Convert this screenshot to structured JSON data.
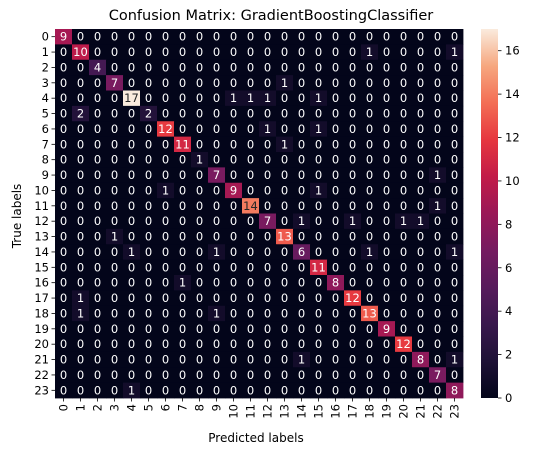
{
  "chart_data": {
    "type": "heatmap",
    "title": "Confusion Matrix: GradientBoostingClassifier",
    "xlabel": "Predicted labels",
    "ylabel": "True labels",
    "x_categories": [
      "0",
      "1",
      "2",
      "3",
      "4",
      "5",
      "6",
      "7",
      "8",
      "9",
      "10",
      "11",
      "12",
      "13",
      "14",
      "15",
      "16",
      "17",
      "18",
      "19",
      "20",
      "21",
      "22",
      "23"
    ],
    "y_categories": [
      "0",
      "1",
      "2",
      "3",
      "4",
      "5",
      "6",
      "7",
      "8",
      "9",
      "10",
      "11",
      "12",
      "13",
      "14",
      "15",
      "16",
      "17",
      "18",
      "19",
      "20",
      "21",
      "22",
      "23"
    ],
    "colorbar": {
      "min": 0,
      "max": 17,
      "ticks": [
        "0",
        "2",
        "4",
        "6",
        "8",
        "10",
        "12",
        "14",
        "16"
      ]
    },
    "matrix": [
      [
        9,
        0,
        0,
        0,
        0,
        0,
        0,
        0,
        0,
        0,
        0,
        0,
        0,
        0,
        0,
        0,
        0,
        0,
        0,
        0,
        0,
        0,
        0,
        0
      ],
      [
        0,
        10,
        0,
        0,
        0,
        0,
        0,
        0,
        0,
        0,
        0,
        0,
        0,
        0,
        0,
        0,
        0,
        0,
        1,
        0,
        0,
        0,
        0,
        1
      ],
      [
        0,
        0,
        4,
        0,
        0,
        0,
        0,
        0,
        0,
        0,
        0,
        0,
        0,
        0,
        0,
        0,
        0,
        0,
        0,
        0,
        0,
        0,
        0,
        0
      ],
      [
        0,
        0,
        0,
        7,
        0,
        0,
        0,
        0,
        0,
        0,
        0,
        0,
        0,
        1,
        0,
        0,
        0,
        0,
        0,
        0,
        0,
        0,
        0,
        0
      ],
      [
        0,
        0,
        0,
        0,
        17,
        0,
        0,
        0,
        0,
        0,
        1,
        1,
        1,
        0,
        0,
        1,
        0,
        0,
        0,
        0,
        0,
        0,
        0,
        0
      ],
      [
        0,
        2,
        0,
        0,
        0,
        2,
        0,
        0,
        0,
        0,
        0,
        0,
        0,
        0,
        0,
        0,
        0,
        0,
        0,
        0,
        0,
        0,
        0,
        0
      ],
      [
        0,
        0,
        0,
        0,
        0,
        0,
        12,
        0,
        0,
        0,
        0,
        0,
        1,
        0,
        0,
        1,
        0,
        0,
        0,
        0,
        0,
        0,
        0,
        0
      ],
      [
        0,
        0,
        0,
        0,
        0,
        0,
        0,
        11,
        0,
        0,
        0,
        0,
        0,
        1,
        0,
        0,
        0,
        0,
        0,
        0,
        0,
        0,
        0,
        0
      ],
      [
        0,
        0,
        0,
        0,
        0,
        0,
        0,
        0,
        1,
        0,
        0,
        0,
        0,
        0,
        0,
        0,
        0,
        0,
        0,
        0,
        0,
        0,
        0,
        0
      ],
      [
        0,
        0,
        0,
        0,
        0,
        0,
        0,
        0,
        0,
        7,
        0,
        0,
        0,
        0,
        0,
        0,
        0,
        0,
        0,
        0,
        0,
        0,
        1,
        0
      ],
      [
        0,
        0,
        0,
        0,
        0,
        0,
        1,
        0,
        0,
        0,
        9,
        0,
        0,
        0,
        0,
        1,
        0,
        0,
        0,
        0,
        0,
        0,
        0,
        0
      ],
      [
        0,
        0,
        0,
        0,
        0,
        0,
        0,
        0,
        0,
        0,
        0,
        14,
        0,
        0,
        0,
        0,
        0,
        0,
        0,
        0,
        0,
        0,
        1,
        0
      ],
      [
        0,
        0,
        0,
        0,
        0,
        0,
        0,
        0,
        0,
        0,
        0,
        0,
        7,
        0,
        1,
        0,
        0,
        1,
        0,
        0,
        1,
        1,
        0,
        0
      ],
      [
        0,
        0,
        0,
        1,
        0,
        0,
        0,
        0,
        0,
        0,
        0,
        0,
        0,
        13,
        0,
        0,
        0,
        0,
        0,
        0,
        0,
        0,
        0,
        0
      ],
      [
        0,
        0,
        0,
        0,
        1,
        0,
        0,
        0,
        0,
        1,
        0,
        0,
        0,
        0,
        6,
        0,
        0,
        0,
        1,
        0,
        0,
        0,
        0,
        1
      ],
      [
        0,
        0,
        0,
        0,
        0,
        0,
        0,
        0,
        0,
        0,
        0,
        0,
        0,
        0,
        0,
        11,
        0,
        0,
        0,
        0,
        0,
        0,
        0,
        0
      ],
      [
        0,
        0,
        0,
        0,
        0,
        0,
        0,
        1,
        0,
        0,
        0,
        0,
        0,
        0,
        0,
        0,
        8,
        0,
        0,
        0,
        0,
        0,
        0,
        0
      ],
      [
        0,
        1,
        0,
        0,
        0,
        0,
        0,
        0,
        0,
        0,
        0,
        0,
        0,
        0,
        0,
        0,
        0,
        12,
        0,
        0,
        0,
        0,
        0,
        0
      ],
      [
        0,
        1,
        0,
        0,
        0,
        0,
        0,
        0,
        0,
        1,
        0,
        0,
        0,
        0,
        0,
        0,
        0,
        0,
        13,
        0,
        0,
        0,
        0,
        0
      ],
      [
        0,
        0,
        0,
        0,
        0,
        0,
        0,
        0,
        0,
        0,
        0,
        0,
        0,
        0,
        0,
        0,
        0,
        0,
        0,
        9,
        0,
        0,
        0,
        0
      ],
      [
        0,
        0,
        0,
        0,
        0,
        0,
        0,
        0,
        0,
        0,
        0,
        0,
        0,
        0,
        0,
        0,
        0,
        0,
        0,
        0,
        12,
        0,
        0,
        0
      ],
      [
        0,
        0,
        0,
        0,
        0,
        0,
        0,
        0,
        0,
        0,
        0,
        0,
        0,
        0,
        1,
        0,
        0,
        0,
        0,
        0,
        0,
        8,
        0,
        1
      ],
      [
        0,
        0,
        0,
        0,
        0,
        0,
        0,
        0,
        0,
        0,
        0,
        0,
        0,
        0,
        0,
        0,
        0,
        0,
        0,
        0,
        0,
        0,
        7,
        0
      ],
      [
        0,
        0,
        0,
        0,
        1,
        0,
        0,
        0,
        0,
        0,
        0,
        0,
        0,
        0,
        0,
        0,
        0,
        0,
        0,
        0,
        0,
        0,
        0,
        8
      ]
    ]
  }
}
